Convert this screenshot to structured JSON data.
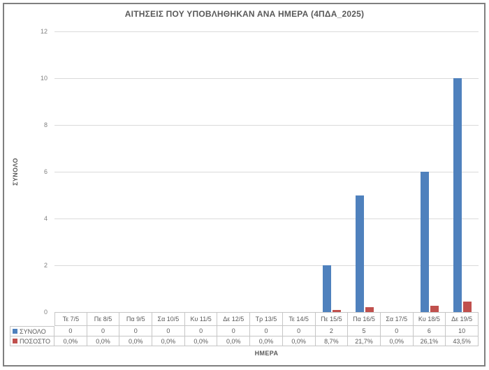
{
  "chart_data": {
    "type": "bar",
    "title": "ΑΙΤΗΣΕΙΣ ΠΟΥ ΥΠΟΒΛΗΘΗΚΑΝ ΑΝΑ ΗΜΕΡΑ (4ΠΔΑ_2025)",
    "xlabel": "ΗΜΕΡΑ",
    "ylabel": "ΣΥΝΟΛΟ",
    "ylim": [
      0,
      12
    ],
    "ytick_step": 2,
    "yticks": [
      "0",
      "2",
      "4",
      "6",
      "8",
      "10",
      "12"
    ],
    "grid": true,
    "legend_position": "data-table-left",
    "categories": [
      "Τε 7/5",
      "Πε 8/5",
      "Πα 9/5",
      "Σα 10/5",
      "Κυ 11/5",
      "Δε 12/5",
      "Τρ 13/5",
      "Τε 14/5",
      "Πε 15/5",
      "Πα 16/5",
      "Σα 17/5",
      "Κυ 18/5",
      "Δε 19/5"
    ],
    "series": [
      {
        "name": "ΣΥΝΟΛΟ",
        "color": "#4f81bd",
        "values": [
          0,
          0,
          0,
          0,
          0,
          0,
          0,
          0,
          2,
          5,
          0,
          6,
          10
        ],
        "display": [
          "0",
          "0",
          "0",
          "0",
          "0",
          "0",
          "0",
          "0",
          "2",
          "5",
          "0",
          "6",
          "10"
        ]
      },
      {
        "name": "ΠΟΣΟΣΤΟ",
        "color": "#c0504d",
        "values": [
          0,
          0,
          0,
          0,
          0,
          0,
          0,
          0,
          0.087,
          0.217,
          0,
          0.261,
          0.435
        ],
        "display": [
          "0,0%",
          "0,0%",
          "0,0%",
          "0,0%",
          "0,0%",
          "0,0%",
          "0,0%",
          "0,0%",
          "8,7%",
          "21,7%",
          "0,0%",
          "26,1%",
          "43,5%"
        ]
      }
    ]
  },
  "colors": {
    "frame_border": "#7f7f7f",
    "gridline": "#dadada",
    "table_border": "#c6c6c6",
    "text_dark": "#595959",
    "text_tick": "#808080"
  }
}
